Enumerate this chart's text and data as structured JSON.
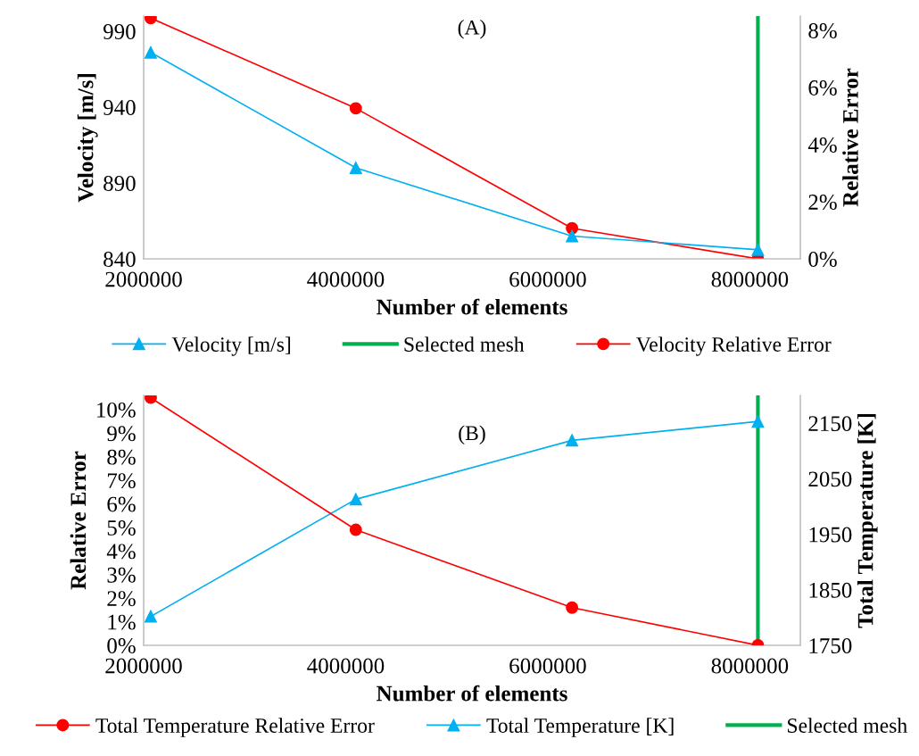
{
  "chart_data": [
    {
      "type": "line",
      "title": "(A)",
      "xlabel": "Number of elements",
      "ylabel": "Velocity [m/s]",
      "y2label": "Relative Error",
      "x": [
        2070000,
        4100000,
        6240000,
        8080000
      ],
      "xlim": [
        2000000,
        8500000
      ],
      "xticks": [
        2000000,
        4000000,
        6000000,
        8000000
      ],
      "ylim": [
        840,
        1000
      ],
      "yticks": [
        840,
        890,
        940,
        990
      ],
      "y2lim": [
        0,
        8.5
      ],
      "y2ticks": [
        {
          "value": 0,
          "label": "0%"
        },
        {
          "value": 2,
          "label": "2%"
        },
        {
          "value": 4,
          "label": "4%"
        },
        {
          "value": 6,
          "label": "6%"
        },
        {
          "value": 8,
          "label": "8%"
        }
      ],
      "series": [
        {
          "name": "Velocity [m/s]",
          "color": "#00b0f0",
          "values": [
            976,
            900,
            855,
            846
          ],
          "marker": "triangle"
        },
        {
          "name": "Velocity Relative Error",
          "color": "#ff0000",
          "values": [
            8.43,
            5.27,
            1.07,
            0
          ],
          "marker": "circle",
          "axis": "y2"
        }
      ],
      "ref_lines": [
        {
          "axis": "x",
          "value": 8080000,
          "label": "Selected mesh",
          "color": "#00b050"
        }
      ],
      "legend": "bottom",
      "grid": false
    },
    {
      "type": "line",
      "title": "(B)",
      "xlabel": "Number of elements",
      "ylabel": "Relative Error",
      "y2label": "Total Temperature [K]",
      "x": [
        2070000,
        4100000,
        6240000,
        8080000
      ],
      "xlim": [
        2000000,
        8500000
      ],
      "xticks": [
        2000000,
        4000000,
        6000000,
        8000000
      ],
      "ylim": [
        0,
        10.6
      ],
      "yticks": [
        {
          "value": 0,
          "label": "0%"
        },
        {
          "value": 1,
          "label": "1%"
        },
        {
          "value": 2,
          "label": "2%"
        },
        {
          "value": 3,
          "label": "3%"
        },
        {
          "value": 4,
          "label": "4%"
        },
        {
          "value": 5,
          "label": "5%"
        },
        {
          "value": 6,
          "label": "6%"
        },
        {
          "value": 7,
          "label": "7%"
        },
        {
          "value": 8,
          "label": "8%"
        },
        {
          "value": 9,
          "label": "9%"
        },
        {
          "value": 10,
          "label": "10%"
        }
      ],
      "y2lim": [
        1750,
        2200
      ],
      "y2ticks": [
        1750,
        1850,
        1950,
        2050,
        2150
      ],
      "series": [
        {
          "name": "Total Temperature Relative Error",
          "color": "#ff0000",
          "values": [
            10.5,
            4.9,
            1.6,
            0
          ],
          "marker": "circle"
        },
        {
          "name": "Total Temperature [K]",
          "color": "#00b0f0",
          "values": [
            1802,
            2013,
            2119,
            2153
          ],
          "marker": "triangle",
          "axis": "y2"
        }
      ],
      "ref_lines": [
        {
          "axis": "x",
          "value": 8080000,
          "label": "Selected mesh",
          "color": "#00b050"
        }
      ],
      "legend": "bottom",
      "grid": false
    }
  ]
}
